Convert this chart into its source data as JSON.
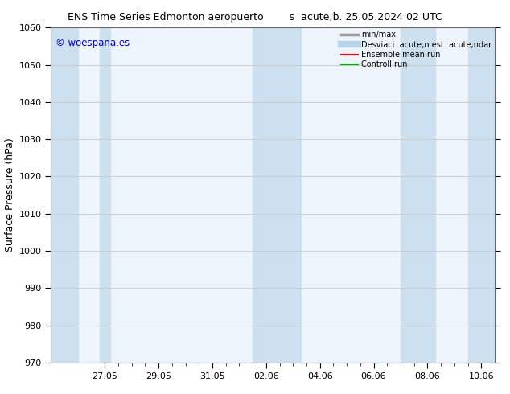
{
  "title": "ENS Time Series Edmonton aeropuerto",
  "title2": "s  acute;b. 25.05.2024 02 UTC",
  "ylabel": "Surface Pressure (hPa)",
  "watermark": "© woespana.es",
  "watermark_color": "#0000cc",
  "ylim": [
    970,
    1060
  ],
  "yticks": [
    970,
    980,
    990,
    1000,
    1010,
    1020,
    1030,
    1040,
    1050,
    1060
  ],
  "xtick_labels": [
    "27.05",
    "29.05",
    "31.05",
    "02.06",
    "04.06",
    "06.06",
    "08.06",
    "10.06"
  ],
  "bg_color": "#ffffff",
  "plot_bg": "#eef4fb",
  "shade_color": "#cce0f0",
  "legend_labels": [
    "min/max",
    "Desviaci  acute;n est  acute;ndar",
    "Ensemble mean run",
    "Controll run"
  ],
  "legend_colors": [
    "#999999",
    "#b8d4e8",
    "#ff0000",
    "#00aa00"
  ],
  "legend_lws": [
    2.5,
    6,
    1.5,
    1.5
  ],
  "grid_color": "#cccccc",
  "font_size": 8,
  "title_fontsize": 9
}
